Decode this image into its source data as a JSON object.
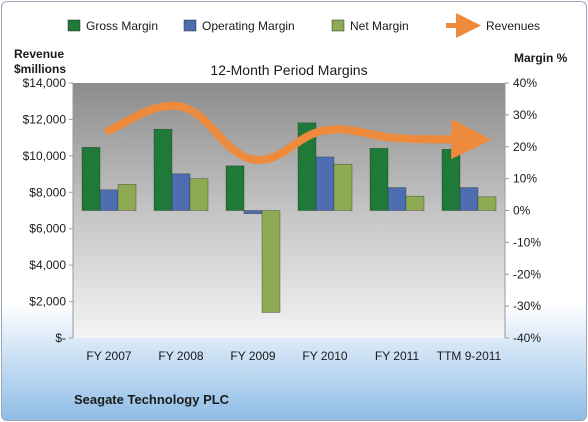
{
  "company": "Seagate Technology PLC",
  "colors": {
    "gross": "#1f7a3a",
    "operating": "#4e6db0",
    "net": "#8eaa52",
    "revenues": "#ee8a3c"
  },
  "chart_data": {
    "type": "bar",
    "title": "12-Month Period Margins",
    "categories": [
      "FY 2007",
      "FY 2008",
      "FY 2009",
      "FY 2010",
      "FY 2011",
      "TTM 9-2011"
    ],
    "left_axis": {
      "title_line1": "Revenue",
      "title_line2": "$millions",
      "range": [
        0,
        14000
      ],
      "ticks": [
        "$14,000",
        "$12,000",
        "$10,000",
        "$8,000",
        "$6,000",
        "$4,000",
        "$2,000",
        "$-"
      ]
    },
    "right_axis": {
      "title": "Margin %",
      "range": [
        -40,
        40
      ],
      "ticks": [
        "40%",
        "30%",
        "20%",
        "10%",
        "0%",
        "-10%",
        "-20%",
        "-30%",
        "-40%"
      ]
    },
    "grid": false,
    "legend_position": "top",
    "series": [
      {
        "name": "Gross Margin",
        "axis": "right",
        "values": [
          19.8,
          25.5,
          14.0,
          27.5,
          19.5,
          19.2
        ]
      },
      {
        "name": "Operating Margin",
        "axis": "right",
        "values": [
          6.5,
          11.5,
          -1.0,
          16.8,
          7.2,
          7.2
        ]
      },
      {
        "name": "Net Margin",
        "axis": "right",
        "values": [
          8.2,
          10.0,
          -32.0,
          14.5,
          4.5,
          4.3
        ]
      },
      {
        "name": "Revenues",
        "axis": "left",
        "type": "line",
        "values": [
          11400,
          12700,
          9800,
          11400,
          10970,
          10900
        ]
      }
    ]
  }
}
